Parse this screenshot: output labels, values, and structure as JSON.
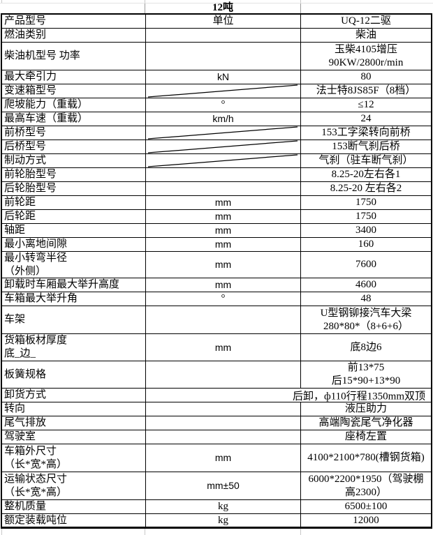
{
  "sheet_title": "12吨",
  "colors": {
    "border": "#000000",
    "gridline": "#c8c8c8",
    "text": "#000000",
    "background": "#ffffff"
  },
  "columns": {
    "label_header": "产品型号",
    "unit_header": "单位",
    "value_header": "UQ-12二驱"
  },
  "rows": [
    {
      "label": "产品型号",
      "unit": "单位",
      "value": "UQ-12二驱"
    },
    {
      "label": "燃油类别",
      "unit": "",
      "value": "柴油"
    },
    {
      "label": "柴油机型号 功率",
      "unit": "",
      "value": "玉柴4105增压",
      "value2": "90KW/2800r/min",
      "tall": "h2b"
    },
    {
      "label": "最大牵引力",
      "unit": "kN",
      "unit_sans": true,
      "value": "80"
    },
    {
      "label": "变速箱型号",
      "unit": "",
      "diag": true,
      "value": "法士特8JS85F（8档）"
    },
    {
      "label": "爬坡能力（重载）",
      "unit": "°",
      "value": "≤12"
    },
    {
      "label": "最高车速（重载）",
      "unit": "km/h",
      "unit_sans": true,
      "value": "24"
    },
    {
      "label": "前桥型号",
      "unit": "",
      "diag": true,
      "value": "153工字梁转向前桥"
    },
    {
      "label": "后桥型号",
      "unit": "",
      "diag": true,
      "value": "153断气刹后桥"
    },
    {
      "label": "制动方式",
      "unit": "",
      "diag": true,
      "value": "气刹（驻车断气刹）"
    },
    {
      "label": "前轮胎型号",
      "unit": "",
      "value": "8.25-20左右各1"
    },
    {
      "label": "后轮胎型号",
      "unit": "",
      "value": "8.25-20 左右各2"
    },
    {
      "label": "前轮距",
      "unit": "mm",
      "unit_sans": true,
      "value": "1750"
    },
    {
      "label": "后轮距",
      "unit": "mm",
      "unit_sans": true,
      "value": "1750"
    },
    {
      "label": "轴距",
      "unit": "mm",
      "unit_sans": true,
      "value": "3400"
    },
    {
      "label": "最小离地间隙",
      "unit": "mm",
      "unit_sans": true,
      "value": "160"
    },
    {
      "label": "最小转弯半径",
      "label2": "（外侧）",
      "unit": "mm",
      "unit_sans": true,
      "value": "7600",
      "tall": "h2s"
    },
    {
      "label": "卸载时车厢最大举升高度",
      "unit": "mm",
      "unit_sans": true,
      "value": "4600"
    },
    {
      "label": "车箱最大举升角",
      "unit": "°",
      "value": "48"
    },
    {
      "label": "车架",
      "unit": "",
      "value": "U型钢铆接汽车大梁",
      "value2": "280*80*（8+6+6）",
      "tall": "h2b"
    },
    {
      "label": "货箱板材厚度",
      "label2": "底_边_",
      "unit": "mm",
      "unit_sans": true,
      "value": "底8边6",
      "tall": "h2"
    },
    {
      "label": "板簧规格",
      "unit": "",
      "value": "前13*75",
      "value2": "后15*90+13*90",
      "tall": "h2"
    },
    {
      "label": "卸货方式",
      "merged": true,
      "value": "后卸，ф110行程1350mm双顶"
    },
    {
      "label": "转向",
      "unit": "",
      "value": "液压助力"
    },
    {
      "label": "尾气排放",
      "unit": "",
      "value": "高端陶瓷尾气净化器"
    },
    {
      "label": "驾驶室",
      "unit": "",
      "value": "座椅左置"
    },
    {
      "label": "车箱外尺寸",
      "label2": "（长*宽*高）",
      "unit": "mm",
      "unit_sans": true,
      "value": "4100*2100*780(槽钢货箱)",
      "tall": "h2b"
    },
    {
      "label": "运输状态尺寸",
      "label2": "（长*宽*高）",
      "unit": "mm±50",
      "unit_sans": true,
      "value": "6000*2200*1950（驾驶棚",
      "value2": "高2300）",
      "tall": "h2b"
    },
    {
      "label": "整机质量",
      "unit": "kg",
      "value": "6500±100"
    },
    {
      "label": "额定装载吨位",
      "unit": "kg",
      "value": "12000"
    }
  ]
}
